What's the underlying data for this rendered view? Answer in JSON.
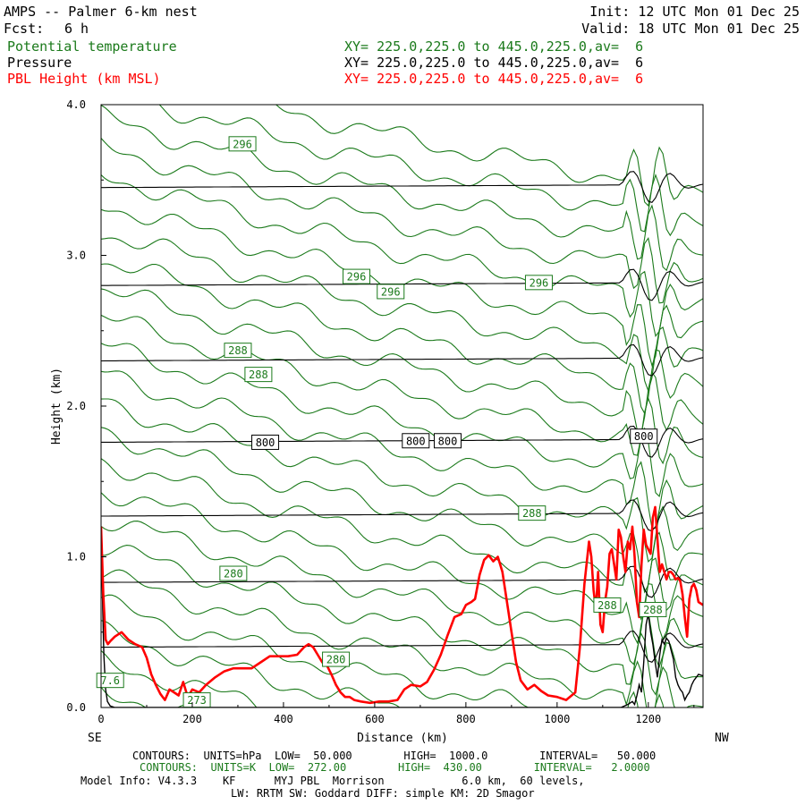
{
  "header": {
    "title": "AMPS -- Palmer 6-km nest",
    "fcst_label": "Fcst:",
    "fcst_value": "6 h",
    "init": "Init: 12 UTC Mon 01 Dec 25",
    "valid": "Valid: 18 UTC Mon 01 Dec 25",
    "fields": [
      {
        "name": "Potential temperature",
        "xy": "XY= 225.0,225.0 to 445.0,225.0,av=  6",
        "color": "#1b7a1b"
      },
      {
        "name": "Pressure",
        "xy": "XY= 225.0,225.0 to 445.0,225.0,av=  6",
        "color": "#000000"
      },
      {
        "name": "PBL Height (km MSL)",
        "xy": "XY= 225.0,225.0 to 445.0,225.0,av=  6",
        "color": "#ff0000"
      }
    ]
  },
  "footer": {
    "line1": "CONTOURS:  UNITS=hPa  LOW=  50.000        HIGH=  1000.0        INTERVAL=   50.000",
    "line2": "CONTOURS:  UNITS=K  LOW=  272.00        HIGH=  430.00        INTERVAL=   2.0000",
    "line3": "Model Info: V4.3.3    KF      MYJ PBL  Morrison            6.0 km,  60 levels,",
    "line4": "LW: RRTM SW: Goddard DIFF: simple KM: 2D Smagor"
  },
  "colors": {
    "theta": "#1b7a1b",
    "pressure": "#000000",
    "pbl": "#ff0000"
  },
  "chart_data": {
    "type": "line",
    "xlabel": "Distance (km)",
    "ylabel": "Height (km)",
    "xlim": [
      0,
      1320
    ],
    "ylim": [
      0,
      4.0
    ],
    "x_ticks": [
      "0",
      "200",
      "400",
      "600",
      "800",
      "1000",
      "1200"
    ],
    "y_ticks": [
      "0.0",
      "1.0",
      "2.0",
      "3.0",
      "4.0"
    ],
    "left_end_label": "SE",
    "right_end_label": "NW",
    "pressure_contours": [
      {
        "z": 3.45,
        "label": ""
      },
      {
        "z": 2.8,
        "label": ""
      },
      {
        "z": 2.3,
        "label": ""
      },
      {
        "z": 1.76,
        "label": "800"
      },
      {
        "z": 1.27,
        "label": ""
      },
      {
        "z": 0.83,
        "label": ""
      },
      {
        "z": 0.4,
        "label": ""
      }
    ],
    "pressure_labels": [
      {
        "x": 360,
        "z": 1.76,
        "text": "800"
      },
      {
        "x": 690,
        "z": 1.77,
        "text": "800"
      },
      {
        "x": 760,
        "z": 1.77,
        "text": "800"
      },
      {
        "x": 1190,
        "z": 1.8,
        "text": "800"
      }
    ],
    "theta_labels": [
      {
        "x": 310,
        "z": 3.74,
        "text": "296"
      },
      {
        "x": 560,
        "z": 2.86,
        "text": "296"
      },
      {
        "x": 635,
        "z": 2.76,
        "text": "296"
      },
      {
        "x": 960,
        "z": 2.82,
        "text": "296"
      },
      {
        "x": 300,
        "z": 2.37,
        "text": "288"
      },
      {
        "x": 345,
        "z": 2.21,
        "text": "288"
      },
      {
        "x": 945,
        "z": 1.29,
        "text": "288"
      },
      {
        "x": 1110,
        "z": 0.68,
        "text": "288"
      },
      {
        "x": 1210,
        "z": 0.65,
        "text": "288"
      },
      {
        "x": 290,
        "z": 0.89,
        "text": "280"
      },
      {
        "x": 515,
        "z": 0.32,
        "text": "280"
      },
      {
        "x": 20,
        "z": 0.18,
        "text": "7.6"
      },
      {
        "x": 210,
        "z": 0.05,
        "text": "273"
      }
    ],
    "pbl_series": {
      "name": "PBL Height (km MSL)",
      "x": [
        0,
        5,
        10,
        15,
        20,
        30,
        45,
        60,
        75,
        90,
        100,
        110,
        120,
        130,
        140,
        150,
        160,
        170,
        180,
        190,
        200,
        215,
        230,
        250,
        270,
        290,
        310,
        330,
        350,
        370,
        390,
        410,
        430,
        445,
        455,
        465,
        475,
        485,
        495,
        505,
        515,
        525,
        535,
        545,
        555,
        570,
        590,
        610,
        630,
        650,
        665,
        680,
        700,
        715,
        730,
        745,
        760,
        775,
        790,
        800,
        812,
        820,
        830,
        840,
        850,
        860,
        870,
        880,
        890,
        900,
        910,
        920,
        935,
        950,
        965,
        980,
        1000,
        1020,
        1040,
        1050,
        1060,
        1070,
        1075,
        1080,
        1085,
        1090,
        1095,
        1100,
        1105,
        1110,
        1115,
        1120,
        1125,
        1130,
        1135,
        1140,
        1145,
        1150,
        1155,
        1160,
        1165,
        1170,
        1175,
        1180,
        1185,
        1190,
        1195,
        1200,
        1205,
        1210,
        1215,
        1220,
        1225,
        1230,
        1235,
        1240,
        1245,
        1250,
        1255,
        1260,
        1265,
        1270,
        1275,
        1280,
        1285,
        1290,
        1295,
        1300,
        1305,
        1310,
        1320
      ],
      "values": [
        1.2,
        0.75,
        0.45,
        0.42,
        0.44,
        0.47,
        0.5,
        0.45,
        0.42,
        0.4,
        0.33,
        0.22,
        0.15,
        0.09,
        0.05,
        0.12,
        0.1,
        0.08,
        0.17,
        0.07,
        0.12,
        0.1,
        0.15,
        0.2,
        0.24,
        0.26,
        0.26,
        0.26,
        0.3,
        0.34,
        0.34,
        0.34,
        0.35,
        0.4,
        0.42,
        0.4,
        0.35,
        0.3,
        0.28,
        0.22,
        0.15,
        0.1,
        0.07,
        0.07,
        0.05,
        0.04,
        0.03,
        0.04,
        0.04,
        0.05,
        0.12,
        0.15,
        0.14,
        0.17,
        0.25,
        0.35,
        0.48,
        0.6,
        0.62,
        0.68,
        0.7,
        0.72,
        0.88,
        0.98,
        1.01,
        0.97,
        1.0,
        0.9,
        0.7,
        0.5,
        0.3,
        0.18,
        0.12,
        0.15,
        0.11,
        0.08,
        0.07,
        0.05,
        0.1,
        0.4,
        0.82,
        1.1,
        1.0,
        0.78,
        0.65,
        0.9,
        0.55,
        0.5,
        0.7,
        0.8,
        1.02,
        1.05,
        0.95,
        0.85,
        1.18,
        1.13,
        1.0,
        0.9,
        1.1,
        1.05,
        1.2,
        1.0,
        0.7,
        0.6,
        0.95,
        1.18,
        1.08,
        1.05,
        1.02,
        1.26,
        1.33,
        1.12,
        0.9,
        0.95,
        0.9,
        0.85,
        0.9,
        0.9,
        0.88,
        0.85,
        0.86,
        0.84,
        0.75,
        0.6,
        0.47,
        0.72,
        0.8,
        0.82,
        0.78,
        0.7,
        0.68
      ]
    },
    "terrain_series": {
      "x": [
        0,
        3,
        6,
        10,
        14,
        20,
        30,
        1120,
        1140,
        1155,
        1165,
        1170,
        1175,
        1180,
        1185,
        1190,
        1195,
        1200,
        1205,
        1210,
        1215,
        1220,
        1225,
        1230,
        1235,
        1240,
        1245,
        1250,
        1255,
        1260,
        1265,
        1270,
        1275,
        1280,
        1285,
        1290,
        1295,
        1300,
        1305,
        1310,
        1320
      ],
      "values": [
        1.1,
        0.75,
        0.35,
        0.12,
        0.04,
        0.01,
        0.0,
        0.0,
        0.0,
        0.02,
        0.04,
        0.02,
        0.08,
        0.15,
        0.1,
        0.3,
        0.55,
        0.62,
        0.5,
        0.42,
        0.3,
        0.2,
        0.35,
        0.45,
        0.42,
        0.46,
        0.44,
        0.38,
        0.32,
        0.2,
        0.15,
        0.12,
        0.1,
        0.05,
        0.08,
        0.1,
        0.15,
        0.18,
        0.2,
        0.22,
        0.21
      ]
    },
    "theta_contour_count": 24
  }
}
